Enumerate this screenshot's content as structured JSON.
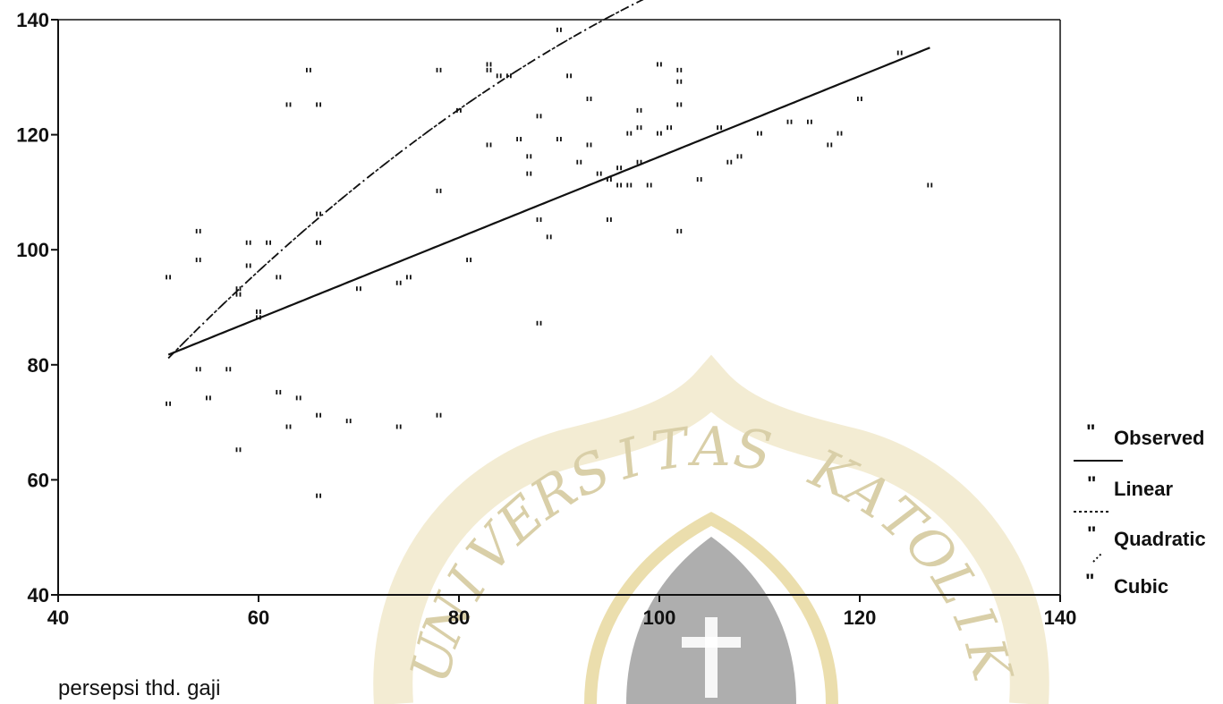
{
  "chart_data": {
    "type": "scatter",
    "title": "",
    "xlabel": "persepsi thd. gaji",
    "ylabel": "",
    "xlim": [
      40,
      140
    ],
    "ylim": [
      40,
      140
    ],
    "xticks": [
      40,
      60,
      80,
      100,
      120,
      140
    ],
    "yticks": [
      40,
      60,
      80,
      100,
      120,
      140
    ],
    "grid": false,
    "legend_position": "right",
    "legend": [
      "Observed",
      "Linear",
      "Quadratic",
      "Cubic"
    ],
    "observed": [
      [
        51,
        95
      ],
      [
        51,
        73
      ],
      [
        54,
        103
      ],
      [
        54,
        98
      ],
      [
        54,
        79
      ],
      [
        55,
        74
      ],
      [
        57,
        79
      ],
      [
        58,
        93
      ],
      [
        58,
        92
      ],
      [
        58,
        65
      ],
      [
        59,
        101
      ],
      [
        59,
        97
      ],
      [
        60,
        89
      ],
      [
        60,
        88
      ],
      [
        61,
        101
      ],
      [
        62,
        95
      ],
      [
        62,
        75
      ],
      [
        63,
        69
      ],
      [
        63,
        125
      ],
      [
        64,
        74
      ],
      [
        65,
        131
      ],
      [
        66,
        125
      ],
      [
        66,
        106
      ],
      [
        66,
        101
      ],
      [
        66,
        71
      ],
      [
        66,
        57
      ],
      [
        69,
        70
      ],
      [
        70,
        93
      ],
      [
        74,
        94
      ],
      [
        74,
        69
      ],
      [
        75,
        95
      ],
      [
        78,
        131
      ],
      [
        78,
        110
      ],
      [
        78,
        71
      ],
      [
        80,
        124
      ],
      [
        81,
        98
      ],
      [
        83,
        132
      ],
      [
        83,
        131
      ],
      [
        83,
        118
      ],
      [
        84,
        130
      ],
      [
        85,
        130
      ],
      [
        86,
        119
      ],
      [
        87,
        116
      ],
      [
        87,
        113
      ],
      [
        88,
        123
      ],
      [
        88,
        105
      ],
      [
        88,
        87
      ],
      [
        89,
        102
      ],
      [
        90,
        138
      ],
      [
        90,
        119
      ],
      [
        91,
        130
      ],
      [
        92,
        115
      ],
      [
        93,
        126
      ],
      [
        93,
        118
      ],
      [
        94,
        113
      ],
      [
        95,
        112
      ],
      [
        95,
        105
      ],
      [
        96,
        111
      ],
      [
        96,
        114
      ],
      [
        97,
        111
      ],
      [
        97,
        120
      ],
      [
        98,
        124
      ],
      [
        98,
        121
      ],
      [
        98,
        115
      ],
      [
        99,
        111
      ],
      [
        100,
        132
      ],
      [
        100,
        120
      ],
      [
        101,
        121
      ],
      [
        102,
        131
      ],
      [
        102,
        129
      ],
      [
        102,
        125
      ],
      [
        102,
        103
      ],
      [
        104,
        112
      ],
      [
        106,
        121
      ],
      [
        107,
        115
      ],
      [
        108,
        116
      ],
      [
        110,
        120
      ],
      [
        113,
        122
      ],
      [
        115,
        122
      ],
      [
        117,
        118
      ],
      [
        118,
        120
      ],
      [
        120,
        126
      ],
      [
        124,
        134
      ],
      [
        127,
        111
      ]
    ],
    "series": [
      {
        "name": "Linear",
        "kind": "linear",
        "x_range": [
          51,
          127
        ],
        "coef": [
          45.93,
          0.7024
        ]
      },
      {
        "name": "Quadratic",
        "kind": "quadratic",
        "x_range": [
          51,
          121
        ],
        "coef": [
          -33.8,
          2.74,
          -0.00953
        ]
      },
      {
        "name": "Cubic",
        "kind": "cubic",
        "x_range": [
          51,
          127
        ],
        "coef": [
          -33.8,
          2.74,
          -0.00953,
          0
        ]
      }
    ],
    "colors": {
      "ink": "#111111",
      "watermark": "#d9cfa8",
      "watermark_shield": "#9a9a9a"
    }
  },
  "watermark": {
    "text": "UNIVERSITAS KATOLIK"
  }
}
